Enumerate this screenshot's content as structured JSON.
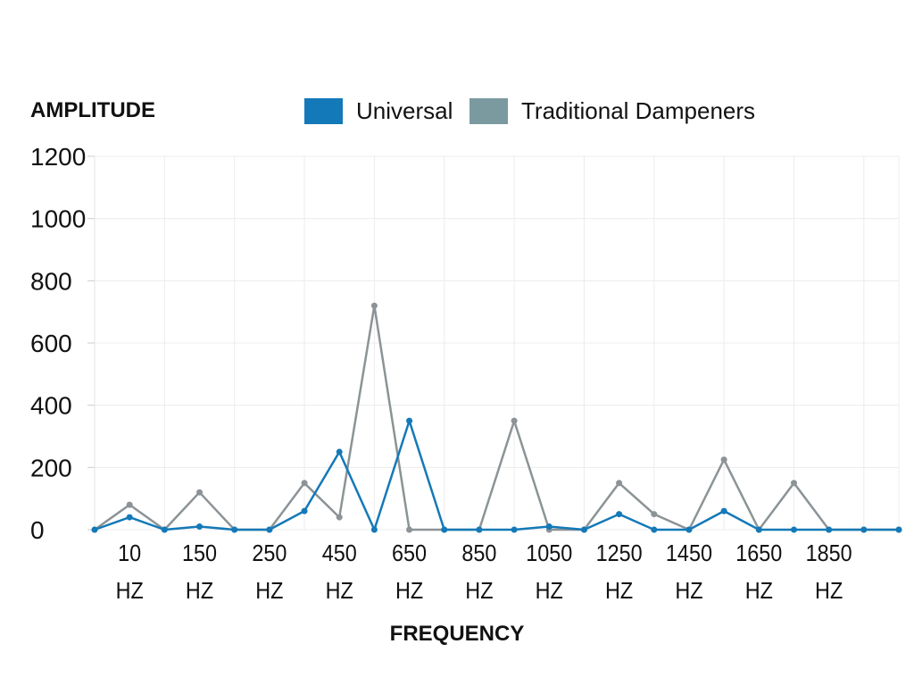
{
  "chart_data": {
    "type": "line",
    "ylabel": "AMPLITUDE",
    "xlabel": "FREQUENCY",
    "ylim": [
      0,
      1200
    ],
    "yticks": [
      "0",
      "200",
      "400",
      "600",
      "800",
      "1000",
      "1200"
    ],
    "grid": true,
    "legend_position": "top",
    "x_tick_labels": [
      {
        "line1": "10",
        "line2": "HZ"
      },
      {
        "line1": "150",
        "line2": "HZ"
      },
      {
        "line1": "250",
        "line2": "HZ"
      },
      {
        "line1": "450",
        "line2": "HZ"
      },
      {
        "line1": "650",
        "line2": "HZ"
      },
      {
        "line1": "850",
        "line2": "HZ"
      },
      {
        "line1": "1050",
        "line2": "HZ"
      },
      {
        "line1": "1250",
        "line2": "HZ"
      },
      {
        "line1": "1450",
        "line2": "HZ"
      },
      {
        "line1": "1650",
        "line2": "HZ"
      },
      {
        "line1": "1850",
        "line2": "HZ"
      }
    ],
    "series": [
      {
        "name": "Universal",
        "color": "#1479b8",
        "values": [
          0,
          40,
          0,
          10,
          0,
          0,
          60,
          250,
          0,
          350,
          0,
          0,
          0,
          10,
          0,
          50,
          0,
          0,
          60,
          0,
          0,
          0,
          0,
          0
        ]
      },
      {
        "name": "Traditional Dampeners",
        "color": "#8c9396",
        "legend_color": "#7a9aa0",
        "values": [
          0,
          80,
          0,
          120,
          0,
          0,
          150,
          40,
          720,
          0,
          0,
          0,
          350,
          0,
          0,
          150,
          50,
          0,
          225,
          0,
          150,
          0,
          0,
          0
        ]
      }
    ]
  }
}
